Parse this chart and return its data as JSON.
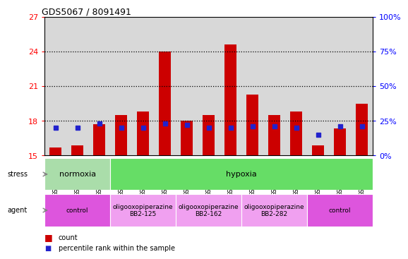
{
  "title": "GDS5067 / 8091491",
  "samples": [
    "GSM1169207",
    "GSM1169208",
    "GSM1169209",
    "GSM1169213",
    "GSM1169214",
    "GSM1169215",
    "GSM1169216",
    "GSM1169217",
    "GSM1169218",
    "GSM1169219",
    "GSM1169220",
    "GSM1169221",
    "GSM1169210",
    "GSM1169211",
    "GSM1169212"
  ],
  "counts": [
    15.7,
    15.9,
    17.7,
    18.5,
    18.8,
    24.0,
    18.0,
    18.5,
    24.6,
    20.3,
    18.5,
    18.8,
    15.9,
    17.35,
    19.5
  ],
  "pct_values": [
    20,
    20,
    23,
    20,
    20,
    23,
    22,
    20,
    20,
    21,
    21,
    20,
    15,
    21,
    21
  ],
  "ylim_left": [
    15,
    27
  ],
  "ylim_right": [
    0,
    100
  ],
  "yticks_left": [
    15,
    18,
    21,
    24,
    27
  ],
  "yticks_right": [
    0,
    25,
    50,
    75,
    100
  ],
  "bar_color": "#cc0000",
  "pct_color": "#2222cc",
  "bar_base": 15.0,
  "stress_groups": [
    {
      "label": "normoxia",
      "start": 0,
      "end": 3,
      "color": "#aaddaa"
    },
    {
      "label": "hypoxia",
      "start": 3,
      "end": 15,
      "color": "#66dd66"
    }
  ],
  "agent_groups": [
    {
      "label": "control",
      "start": 0,
      "end": 3,
      "color": "#dd55dd"
    },
    {
      "label": "oligooxopiperazine\nBB2-125",
      "start": 3,
      "end": 6,
      "color": "#f0a0f0"
    },
    {
      "label": "oligooxopiperazine\nBB2-162",
      "start": 6,
      "end": 9,
      "color": "#f0a0f0"
    },
    {
      "label": "oligooxopiperazine\nBB2-282",
      "start": 9,
      "end": 12,
      "color": "#f0a0f0"
    },
    {
      "label": "control",
      "start": 12,
      "end": 15,
      "color": "#dd55dd"
    }
  ],
  "bg_color": "#ffffff",
  "col_bg": "#d8d8d8",
  "dotted_levels": [
    18,
    21,
    24
  ]
}
